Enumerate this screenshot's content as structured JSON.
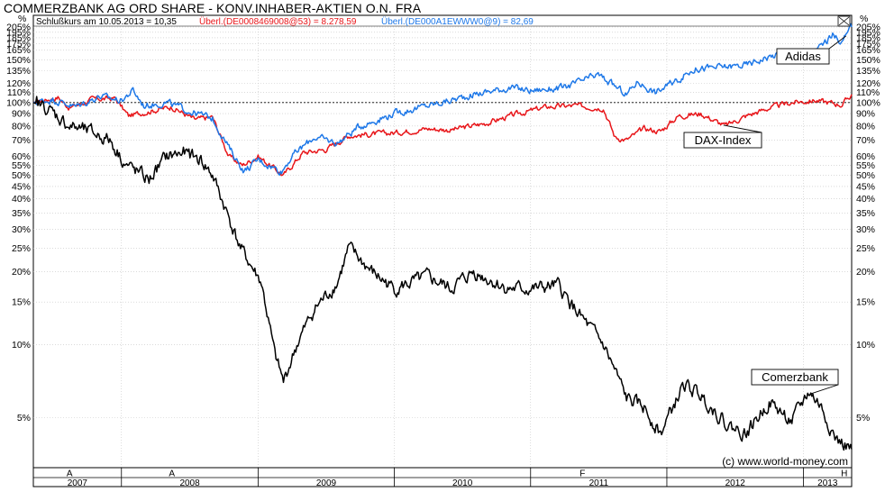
{
  "chart_data": {
    "type": "line",
    "title": "COMMERZBANK AG ORD SHARE - KONV.INHABER-AKTIEN O.N. FRA",
    "y_unit_label": "%",
    "y_scale": "log",
    "ylim": [
      3.5,
      205
    ],
    "reference_line": 100,
    "subtitle": {
      "main": "Schlußkurs am 10.05.2013 = 10,35",
      "dax": "Überl.(DE0008469008@53) = 8.278,59",
      "adidas": "Überl.(DE000A1EWWW0@9) = 82,69"
    },
    "y_ticks": [
      205,
      195,
      185,
      175,
      165,
      150,
      135,
      120,
      110,
      100,
      90,
      80,
      70,
      60,
      55,
      50,
      45,
      40,
      35,
      30,
      25,
      20,
      15,
      10,
      5
    ],
    "y_tick_labels": [
      "205%",
      "195%",
      "185%",
      "175%",
      "165%",
      "150%",
      "135%",
      "120%",
      "110%",
      "100%",
      "90%",
      "80%",
      "70%",
      "60%",
      "55%",
      "50%",
      "45%",
      "40%",
      "35%",
      "30%",
      "25%",
      "20%",
      "15%",
      "10%",
      "5%"
    ],
    "x_range": [
      "2007-05-10",
      "2013-05-10"
    ],
    "year_labels": [
      {
        "label": "2007",
        "from": "2007-05-10",
        "to": "2008-01-01"
      },
      {
        "label": "2008",
        "from": "2008-01-01",
        "to": "2009-01-01"
      },
      {
        "label": "2009",
        "from": "2009-01-01",
        "to": "2010-01-01"
      },
      {
        "label": "2010",
        "from": "2010-01-01",
        "to": "2011-01-01"
      },
      {
        "label": "2011",
        "from": "2011-01-01",
        "to": "2012-01-01"
      },
      {
        "label": "2012",
        "from": "2012-01-01",
        "to": "2013-01-01"
      },
      {
        "label": "2013",
        "from": "2013-01-01",
        "to": "2013-05-10"
      }
    ],
    "event_markers": [
      {
        "date": "2007-08-15",
        "label": "A"
      },
      {
        "date": "2008-05-15",
        "label": "A"
      },
      {
        "date": "2011-05-20",
        "label": "F"
      },
      {
        "date": "2013-04-20",
        "label": "H"
      },
      {
        "date": "2013-08-15",
        "label": "F"
      }
    ],
    "series": [
      {
        "name": "Adidas",
        "color": "#1e78e8",
        "points": [
          [
            "2007-05-10",
            100
          ],
          [
            "2007-07-01",
            103
          ],
          [
            "2007-09-01",
            96
          ],
          [
            "2007-11-01",
            106
          ],
          [
            "2008-01-01",
            102
          ],
          [
            "2008-02-01",
            112
          ],
          [
            "2008-03-01",
            97
          ],
          [
            "2008-05-01",
            100
          ],
          [
            "2008-07-01",
            92
          ],
          [
            "2008-09-01",
            86
          ],
          [
            "2008-10-15",
            65
          ],
          [
            "2008-11-25",
            52
          ],
          [
            "2009-01-01",
            58
          ],
          [
            "2009-03-05",
            52
          ],
          [
            "2009-04-01",
            60
          ],
          [
            "2009-06-01",
            72
          ],
          [
            "2009-08-01",
            68
          ],
          [
            "2009-10-01",
            80
          ],
          [
            "2010-01-01",
            90
          ],
          [
            "2010-04-01",
            97
          ],
          [
            "2010-06-01",
            102
          ],
          [
            "2010-08-01",
            108
          ],
          [
            "2010-11-01",
            115
          ],
          [
            "2011-01-01",
            112
          ],
          [
            "2011-04-01",
            115
          ],
          [
            "2011-07-01",
            130
          ],
          [
            "2011-09-15",
            108
          ],
          [
            "2011-10-15",
            122
          ],
          [
            "2011-12-01",
            110
          ],
          [
            "2012-01-15",
            120
          ],
          [
            "2012-03-15",
            138
          ],
          [
            "2012-06-01",
            140
          ],
          [
            "2012-08-01",
            143
          ],
          [
            "2012-10-01",
            155
          ],
          [
            "2012-12-01",
            162
          ],
          [
            "2013-02-01",
            162
          ],
          [
            "2013-03-20",
            190
          ],
          [
            "2013-04-15",
            178
          ],
          [
            "2013-05-10",
            205
          ]
        ]
      },
      {
        "name": "DAX-Index",
        "color": "#e8161a",
        "points": [
          [
            "2007-05-10",
            100
          ],
          [
            "2007-07-15",
            105
          ],
          [
            "2007-08-15",
            95
          ],
          [
            "2007-10-15",
            103
          ],
          [
            "2007-12-15",
            104
          ],
          [
            "2008-01-20",
            88
          ],
          [
            "2008-03-01",
            91
          ],
          [
            "2008-05-15",
            96
          ],
          [
            "2008-07-15",
            85
          ],
          [
            "2008-09-01",
            87
          ],
          [
            "2008-10-15",
            60
          ],
          [
            "2008-11-20",
            55
          ],
          [
            "2009-01-01",
            60
          ],
          [
            "2009-03-10",
            50
          ],
          [
            "2009-05-01",
            62
          ],
          [
            "2009-07-01",
            64
          ],
          [
            "2009-09-01",
            73
          ],
          [
            "2010-01-01",
            75
          ],
          [
            "2010-04-01",
            78
          ],
          [
            "2010-06-01",
            77
          ],
          [
            "2010-09-01",
            82
          ],
          [
            "2010-12-01",
            90
          ],
          [
            "2011-02-15",
            96
          ],
          [
            "2011-05-01",
            97
          ],
          [
            "2011-07-15",
            95
          ],
          [
            "2011-08-15",
            72
          ],
          [
            "2011-09-15",
            70
          ],
          [
            "2011-11-01",
            78
          ],
          [
            "2011-12-15",
            76
          ],
          [
            "2012-02-01",
            88
          ],
          [
            "2012-04-01",
            90
          ],
          [
            "2012-06-05",
            80
          ],
          [
            "2012-08-01",
            88
          ],
          [
            "2012-10-01",
            95
          ],
          [
            "2012-12-01",
            100
          ],
          [
            "2013-02-01",
            102
          ],
          [
            "2013-04-15",
            98
          ],
          [
            "2013-05-10",
            108
          ]
        ]
      },
      {
        "name": "Comerzbank",
        "color": "#000000",
        "points": [
          [
            "2007-05-10",
            100
          ],
          [
            "2007-06-15",
            95
          ],
          [
            "2007-08-15",
            80
          ],
          [
            "2007-10-15",
            75
          ],
          [
            "2007-12-01",
            70
          ],
          [
            "2008-01-15",
            55
          ],
          [
            "2008-03-15",
            48
          ],
          [
            "2008-05-01",
            60
          ],
          [
            "2008-06-15",
            62
          ],
          [
            "2008-08-01",
            58
          ],
          [
            "2008-09-01",
            50
          ],
          [
            "2008-10-10",
            35
          ],
          [
            "2008-11-15",
            25
          ],
          [
            "2009-01-10",
            18
          ],
          [
            "2009-02-15",
            9
          ],
          [
            "2009-03-10",
            7
          ],
          [
            "2009-04-15",
            10
          ],
          [
            "2009-06-01",
            14
          ],
          [
            "2009-08-01",
            18
          ],
          [
            "2009-09-01",
            25
          ],
          [
            "2009-11-01",
            20
          ],
          [
            "2010-01-01",
            17
          ],
          [
            "2010-04-01",
            19
          ],
          [
            "2010-06-01",
            17
          ],
          [
            "2010-08-01",
            20
          ],
          [
            "2010-11-01",
            17
          ],
          [
            "2011-01-15",
            17
          ],
          [
            "2011-03-15",
            17.5
          ],
          [
            "2011-05-15",
            13
          ],
          [
            "2011-07-15",
            10
          ],
          [
            "2011-09-15",
            6
          ],
          [
            "2011-11-01",
            5.5
          ],
          [
            "2011-12-15",
            4.3
          ],
          [
            "2012-02-15",
            6.8
          ],
          [
            "2012-04-01",
            6.2
          ],
          [
            "2012-06-15",
            4.6
          ],
          [
            "2012-08-01",
            4.3
          ],
          [
            "2012-10-01",
            5.8
          ],
          [
            "2012-12-01",
            4.8
          ],
          [
            "2013-01-15",
            6.4
          ],
          [
            "2013-02-15",
            5.6
          ],
          [
            "2013-04-01",
            4.0
          ],
          [
            "2013-05-10",
            3.7
          ]
        ]
      }
    ],
    "annotations": [
      {
        "text": "Adidas",
        "series": "Adidas",
        "date": "2013-04-25"
      },
      {
        "text": "DAX-Index",
        "series": "DAX-Index",
        "date": "2012-06-01"
      },
      {
        "text": "Comerzbank",
        "series": "Comerzbank",
        "date": "2013-01-20"
      }
    ],
    "copyright": "(c) www.world-money.com"
  }
}
